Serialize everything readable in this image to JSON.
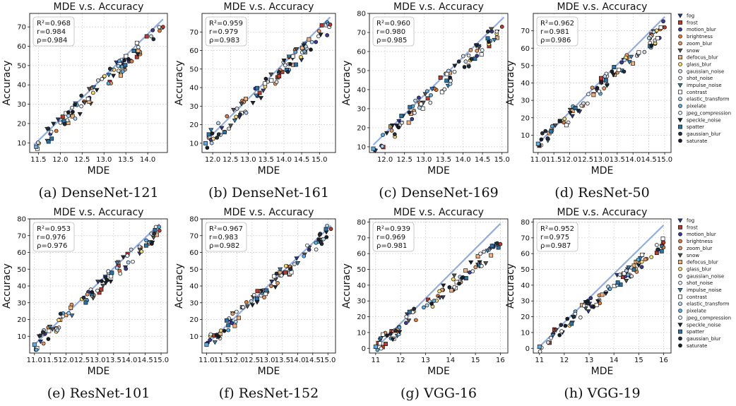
{
  "legend": [
    {
      "name": "fog",
      "color": "#2b3a8c",
      "marker": "tri"
    },
    {
      "name": "frost",
      "color": "#c0392b",
      "marker": "sq"
    },
    {
      "name": "motion_blur",
      "color": "#3b3b98",
      "marker": "circ"
    },
    {
      "name": "brightness",
      "color": "#e07b39",
      "marker": "circ"
    },
    {
      "name": "zoom_blur",
      "color": "#e59866",
      "marker": "circ"
    },
    {
      "name": "snow",
      "color": "#555555",
      "marker": "tri"
    },
    {
      "name": "defocus_blur",
      "color": "#f0b27a",
      "marker": "sq"
    },
    {
      "name": "glass_blur",
      "color": "#f7dc6f",
      "marker": "circ"
    },
    {
      "name": "gaussian_noise",
      "color": "#d5d8dc",
      "marker": "circ"
    },
    {
      "name": "shot_noise",
      "color": "#e8eef3",
      "marker": "circ"
    },
    {
      "name": "impulse_noise",
      "color": "#2e86c1",
      "marker": "tri"
    },
    {
      "name": "contrast",
      "color": "#ffffff",
      "marker": "sq"
    },
    {
      "name": "elastic_transform",
      "color": "#aed6f1",
      "marker": "circ"
    },
    {
      "name": "pixelate",
      "color": "#5dade2",
      "marker": "circ"
    },
    {
      "name": "jpeg_compression",
      "color": "#eaf2f8",
      "marker": "circ"
    },
    {
      "name": "speckle_noise",
      "color": "#1b2631",
      "marker": "tri"
    },
    {
      "name": "spatter",
      "color": "#2874a6",
      "marker": "sq"
    },
    {
      "name": "gaussian_blur",
      "color": "#212f3d",
      "marker": "circ"
    },
    {
      "name": "saturate",
      "color": "#17202a",
      "marker": "circ"
    }
  ],
  "chart_data": [
    {
      "type": "scatter",
      "title": "MDE  v.s.  Accuracy",
      "xlabel": "MDE",
      "ylabel": "Accuracy",
      "caption": "(a) DenseNet-121",
      "stats": [
        "R²=0.968",
        "r=0.984",
        "ρ=0.984"
      ],
      "xlim": [
        11.3,
        14.45
      ],
      "ylim": [
        5,
        77
      ],
      "xticks": [
        11.5,
        12.0,
        12.5,
        13.0,
        13.5,
        14.0
      ],
      "yticks": [
        10,
        20,
        30,
        40,
        50,
        60,
        70
      ],
      "tick_decimals": 1,
      "fit": [
        [
          11.4,
          9
        ],
        [
          14.35,
          74
        ]
      ],
      "xs": [
        11.45,
        14.35
      ],
      "ys": [
        8,
        70
      ]
    },
    {
      "type": "scatter",
      "title": "MDE  v.s.  Accuracy",
      "xlabel": "MDE",
      "ylabel": "Accuracy",
      "caption": "(b) DenseNet-161",
      "stats": [
        "R²=0.959",
        "r=0.979",
        "ρ=0.983"
      ],
      "xlim": [
        11.7,
        15.45
      ],
      "ylim": [
        5,
        80
      ],
      "xticks": [
        12.0,
        12.5,
        13.0,
        13.5,
        14.0,
        14.5,
        15.0
      ],
      "yticks": [
        10,
        20,
        30,
        40,
        50,
        60,
        70
      ],
      "tick_decimals": 1,
      "fit": [
        [
          11.85,
          12
        ],
        [
          15.3,
          78
        ]
      ],
      "xs": [
        11.8,
        15.3
      ],
      "ys": [
        10,
        74
      ]
    },
    {
      "type": "scatter",
      "title": "MDE  v.s.  Accuracy",
      "xlabel": "MDE",
      "ylabel": "Accuracy",
      "caption": "(c) DenseNet-169",
      "stats": [
        "R²=0.960",
        "r=0.980",
        "ρ=0.985"
      ],
      "xlim": [
        11.6,
        15.15
      ],
      "ylim": [
        7,
        80
      ],
      "xticks": [
        12.0,
        12.5,
        13.0,
        13.5,
        14.0,
        14.5,
        15.0
      ],
      "yticks": [
        10,
        20,
        30,
        40,
        50,
        60,
        70,
        80
      ],
      "tick_decimals": 1,
      "fit": [
        [
          11.7,
          11
        ],
        [
          15.05,
          78
        ]
      ],
      "xs": [
        11.7,
        15.0
      ],
      "ys": [
        9,
        73
      ]
    },
    {
      "type": "scatter",
      "title": "MDE  v.s.  Accuracy",
      "xlabel": "MDE",
      "ylabel": "Accuracy",
      "caption": "(d) ResNet-50",
      "stats": [
        "R²=0.962",
        "r=0.981",
        "ρ=0.986"
      ],
      "xlim": [
        10.85,
        15.2
      ],
      "ylim": [
        0,
        80
      ],
      "xticks": [
        11.0,
        11.5,
        12.0,
        12.5,
        13.0,
        13.5,
        14.0,
        14.5,
        15.0
      ],
      "yticks": [
        10,
        20,
        30,
        40,
        50,
        60,
        70
      ],
      "tick_decimals": 1,
      "fit": [
        [
          11.0,
          5
        ],
        [
          15.0,
          78
        ]
      ],
      "xs": [
        11.0,
        15.0
      ],
      "ys": [
        5,
        72
      ]
    },
    {
      "type": "scatter",
      "title": "MDE  v.s.  Accuracy",
      "xlabel": "MDE",
      "ylabel": "Accuracy",
      "caption": "(e) ResNet-101",
      "stats": [
        "R²=0.953",
        "r=0.976",
        "ρ=0.976"
      ],
      "xlim": [
        10.85,
        15.2
      ],
      "ylim": [
        0,
        80
      ],
      "xticks": [
        11.0,
        11.5,
        12.0,
        12.5,
        13.0,
        13.5,
        14.0,
        14.5,
        15.0
      ],
      "yticks": [
        10,
        20,
        30,
        40,
        50,
        60,
        70,
        80
      ],
      "tick_decimals": 1,
      "fit": [
        [
          11.0,
          5
        ],
        [
          14.95,
          77
        ]
      ],
      "xs": [
        11.0,
        14.95
      ],
      "ys": [
        5,
        73
      ]
    },
    {
      "type": "scatter",
      "title": "MDE  v.s.  Accuracy",
      "xlabel": "MDE",
      "ylabel": "Accuracy",
      "caption": "(f) ResNet-152",
      "stats": [
        "R²=0.967",
        "r=0.983",
        "ρ=0.982"
      ],
      "xlim": [
        10.85,
        15.25
      ],
      "ylim": [
        0,
        80
      ],
      "xticks": [
        11.0,
        11.5,
        12.0,
        12.5,
        13.0,
        13.5,
        14.0,
        14.5,
        15.0
      ],
      "yticks": [
        10,
        20,
        30,
        40,
        50,
        60,
        70,
        80
      ],
      "tick_decimals": 1,
      "fit": [
        [
          11.0,
          5
        ],
        [
          15.1,
          76
        ]
      ],
      "xs": [
        11.0,
        15.1
      ],
      "ys": [
        5,
        74
      ]
    },
    {
      "type": "scatter",
      "title": "MDE  v.s.  Accuracy",
      "xlabel": "MDE",
      "ylabel": "Accuracy",
      "caption": "(g) VGG-16",
      "stats": [
        "R²=0.939",
        "r=0.969",
        "ρ=0.981"
      ],
      "xlim": [
        10.75,
        16.3
      ],
      "ylim": [
        -3,
        82
      ],
      "xticks": [
        11,
        12,
        13,
        14,
        15,
        16
      ],
      "yticks": [
        0,
        10,
        20,
        30,
        40,
        50,
        60,
        70,
        80
      ],
      "tick_decimals": 0,
      "fit": [
        [
          11.0,
          0
        ],
        [
          16.0,
          79
        ]
      ],
      "xs": [
        11.0,
        16.0
      ],
      "ys": [
        1,
        66
      ]
    },
    {
      "type": "scatter",
      "title": "MDE  v.s.  Accuracy",
      "xlabel": "MDE",
      "ylabel": "Accuracy",
      "caption": "(h) VGG-19",
      "stats": [
        "R²=0.952",
        "r=0.975",
        "ρ=0.987"
      ],
      "xlim": [
        10.75,
        16.3
      ],
      "ylim": [
        -3,
        82
      ],
      "xticks": [
        11,
        12,
        13,
        14,
        15,
        16
      ],
      "yticks": [
        0,
        10,
        20,
        30,
        40,
        50,
        60,
        70,
        80
      ],
      "tick_decimals": 0,
      "fit": [
        [
          11.0,
          1
        ],
        [
          16.0,
          78
        ]
      ],
      "xs": [
        11.0,
        16.0
      ],
      "ys": [
        1,
        67
      ]
    }
  ]
}
